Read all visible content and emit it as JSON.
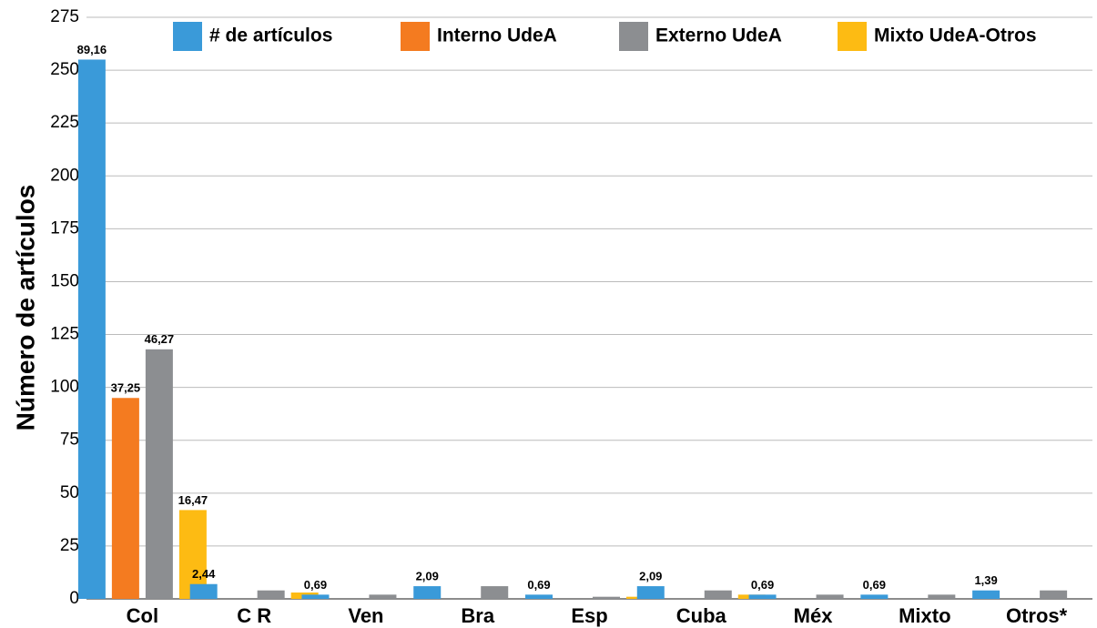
{
  "chart_data": {
    "type": "bar",
    "y_label": "Número de artículos",
    "categories": [
      "Col",
      "C R",
      "Ven",
      "Bra",
      "Esp",
      "Cuba",
      "Méx",
      "Mixto",
      "Otros*"
    ],
    "series": [
      {
        "name": "# de artículos",
        "color": "#3a9ad9",
        "values": [
          255,
          7,
          2,
          6,
          2,
          6,
          2,
          2,
          4
        ],
        "percent_labels": [
          "89,16",
          "2,44",
          "0,69",
          "2,09",
          "0,69",
          "2,09",
          "0,69",
          "0,69",
          "1,39"
        ]
      },
      {
        "name": "Interno UdeA",
        "color": "#f47b20",
        "values": [
          95,
          0,
          0,
          0,
          0,
          0,
          0,
          0,
          0
        ],
        "percent_labels": [
          "37,25",
          null,
          null,
          null,
          null,
          null,
          null,
          null,
          null
        ]
      },
      {
        "name": "Externo UdeA",
        "color": "#8c8e91",
        "values": [
          118,
          4,
          2,
          6,
          1,
          4,
          2,
          2,
          4
        ],
        "percent_labels": [
          "46,27",
          null,
          null,
          null,
          null,
          null,
          null,
          null,
          null
        ]
      },
      {
        "name": "Mixto UdeA-Otros",
        "color": "#fdbb13",
        "values": [
          42,
          3,
          0,
          0,
          1,
          2,
          0,
          0,
          0
        ],
        "percent_labels": [
          "16,47",
          null,
          null,
          null,
          null,
          null,
          null,
          null,
          null
        ]
      }
    ],
    "ylim": [
      0,
      275
    ],
    "yticks": [
      0,
      25,
      50,
      75,
      100,
      125,
      150,
      175,
      200,
      225,
      250,
      275
    ],
    "grid": true
  }
}
